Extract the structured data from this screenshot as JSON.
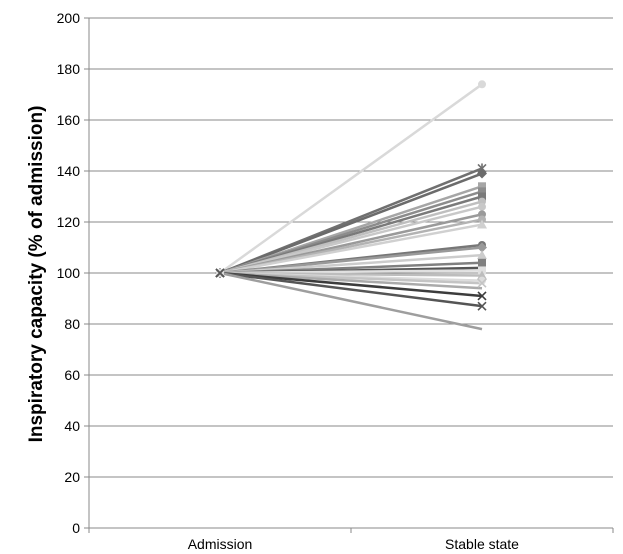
{
  "chart_data": {
    "type": "line",
    "title": "",
    "xlabel": "",
    "ylabel": "Inspiratory capacity (% of admission)",
    "categories": [
      "Admission",
      "Stable state"
    ],
    "ylim": [
      0,
      200
    ],
    "y_ticks": [
      "0",
      "20",
      "40",
      "60",
      "80",
      "100",
      "120",
      "140",
      "160",
      "180",
      "200"
    ],
    "grid": true,
    "legend": "none",
    "series": [
      {
        "values": [
          100,
          174
        ],
        "color": "#d9d9d9",
        "marker": "circle"
      },
      {
        "values": [
          100,
          141
        ],
        "color": "#707070",
        "marker": "asterisk"
      },
      {
        "values": [
          100,
          139
        ],
        "color": "#6b6b6b",
        "marker": "diamond"
      },
      {
        "values": [
          100,
          134
        ],
        "color": "#a6a6a6",
        "marker": "square"
      },
      {
        "values": [
          100,
          132
        ],
        "color": "#8c8c8c",
        "marker": "square"
      },
      {
        "values": [
          100,
          130
        ],
        "color": "#7a7a7a",
        "marker": "square"
      },
      {
        "values": [
          100,
          128
        ],
        "color": "#bfbfbf",
        "marker": "circle"
      },
      {
        "values": [
          100,
          126
        ],
        "color": "#c8c8c8",
        "marker": "circle"
      },
      {
        "values": [
          100,
          123
        ],
        "color": "#9a9a9a",
        "marker": "circle"
      },
      {
        "values": [
          100,
          121
        ],
        "color": "#b3b3b3",
        "marker": "circle"
      },
      {
        "values": [
          100,
          119
        ],
        "color": "#d0d0d0",
        "marker": "triangle"
      },
      {
        "values": [
          100,
          111
        ],
        "color": "#777777",
        "marker": "circle"
      },
      {
        "values": [
          100,
          110
        ],
        "color": "#999999",
        "marker": "diamond"
      },
      {
        "values": [
          100,
          107
        ],
        "color": "#cccccc",
        "marker": "triangle"
      },
      {
        "values": [
          100,
          104
        ],
        "color": "#808080",
        "marker": "square"
      },
      {
        "values": [
          100,
          102
        ],
        "color": "#555555",
        "marker": "none"
      },
      {
        "values": [
          100,
          101
        ],
        "color": "#e0e0e0",
        "marker": "square"
      },
      {
        "values": [
          100,
          99
        ],
        "color": "#bdbdbd",
        "marker": "triangle"
      },
      {
        "values": [
          100,
          97
        ],
        "color": "#dcdcdc",
        "marker": "circle"
      },
      {
        "values": [
          100,
          96
        ],
        "color": "#c4c4c4",
        "marker": "x"
      },
      {
        "values": [
          100,
          94
        ],
        "color": "#aaaaaa",
        "marker": "none"
      },
      {
        "values": [
          100,
          91
        ],
        "color": "#3c3c3c",
        "marker": "x"
      },
      {
        "values": [
          100,
          87
        ],
        "color": "#555555",
        "marker": "x"
      },
      {
        "values": [
          100,
          78
        ],
        "color": "#9e9e9e",
        "marker": "none"
      }
    ]
  }
}
